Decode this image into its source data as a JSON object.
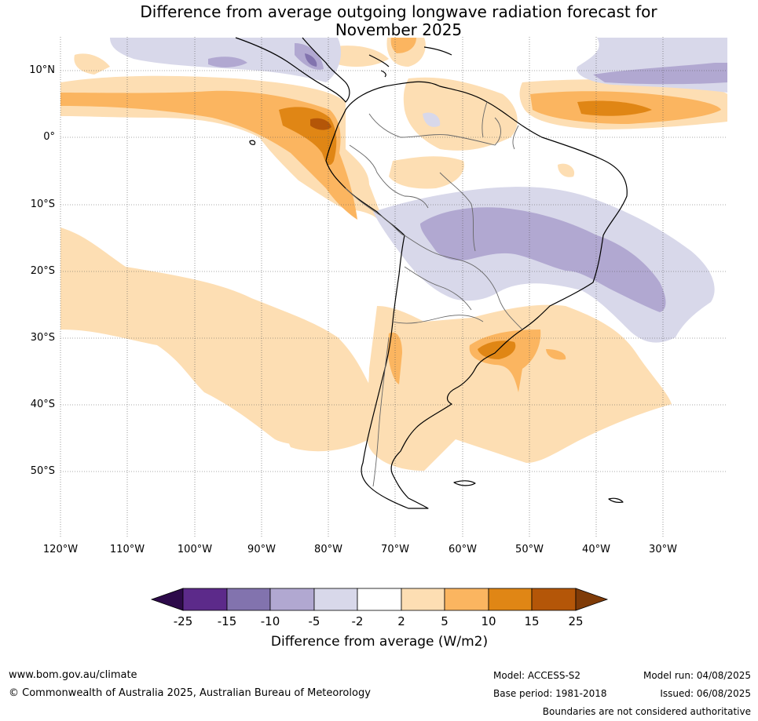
{
  "title": {
    "line1": "Difference from average outgoing longwave radiation forecast for",
    "line2": "November 2025"
  },
  "map": {
    "lat_labels": [
      "10°N",
      "0°",
      "10°S",
      "20°S",
      "30°S",
      "40°S",
      "50°S"
    ],
    "lon_labels": [
      "120°W",
      "110°W",
      "100°W",
      "90°W",
      "80°W",
      "70°W",
      "60°W",
      "50°W",
      "40°W",
      "30°W"
    ],
    "extent": {
      "lon_min": -120,
      "lon_max": -20,
      "lat_min": -60,
      "lat_max": 15
    }
  },
  "colorbar": {
    "tick_labels": [
      "-25",
      "-15",
      "-10",
      "-5",
      "-2",
      "2",
      "5",
      "10",
      "15",
      "25"
    ],
    "colors": [
      "#2d0a4a",
      "#5c2a8a",
      "#8273ae",
      "#b1a8d1",
      "#d8d8ea",
      "#ffffff",
      "#fddeb3",
      "#fbb560",
      "#e08615",
      "#b45608",
      "#7f3b08"
    ],
    "title": "Difference from average (W/m2)"
  },
  "footer": {
    "website": "www.bom.gov.au/climate",
    "copyright": "© Commonwealth of Australia 2025, Australian Bureau of Meteorology",
    "model": "Model: ACCESS-S2",
    "base_period": "Base period: 1981-2018",
    "model_run": "Model run: 04/08/2025",
    "issued": "Issued: 06/08/2025",
    "disclaimer": "Boundaries are not considered authoritative"
  }
}
